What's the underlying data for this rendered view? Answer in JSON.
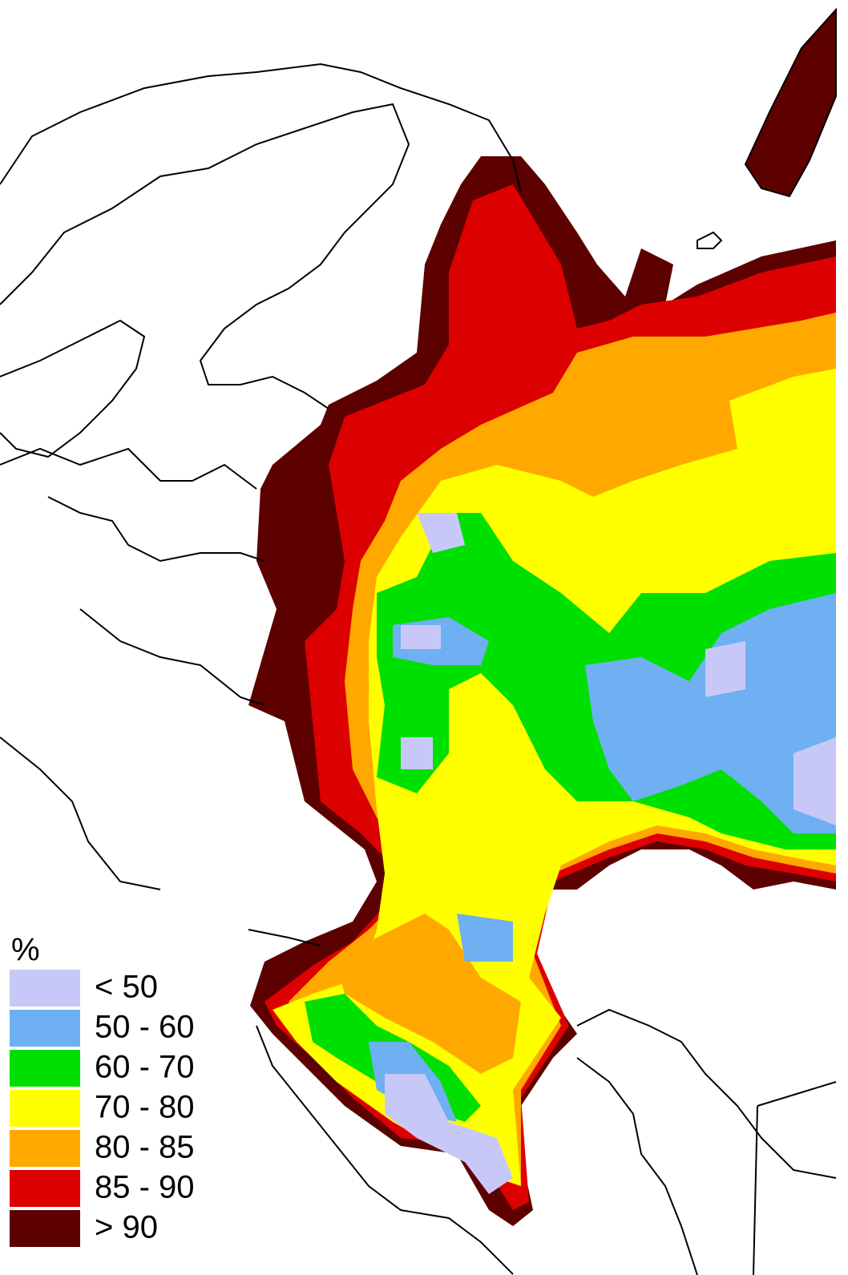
{
  "legend": {
    "title": "%",
    "items": [
      {
        "label": "< 50",
        "color": "#c8c8f8"
      },
      {
        "label": "50 - 60",
        "color": "#6eb0f2"
      },
      {
        "label": "60 - 70",
        "color": "#00e000"
      },
      {
        "label": "70 - 80",
        "color": "#ffff00"
      },
      {
        "label": "80 - 85",
        "color": "#ffa800"
      },
      {
        "label": "85 - 90",
        "color": "#dd0000"
      },
      {
        "label": "> 90",
        "color": "#5c0000"
      }
    ]
  }
}
